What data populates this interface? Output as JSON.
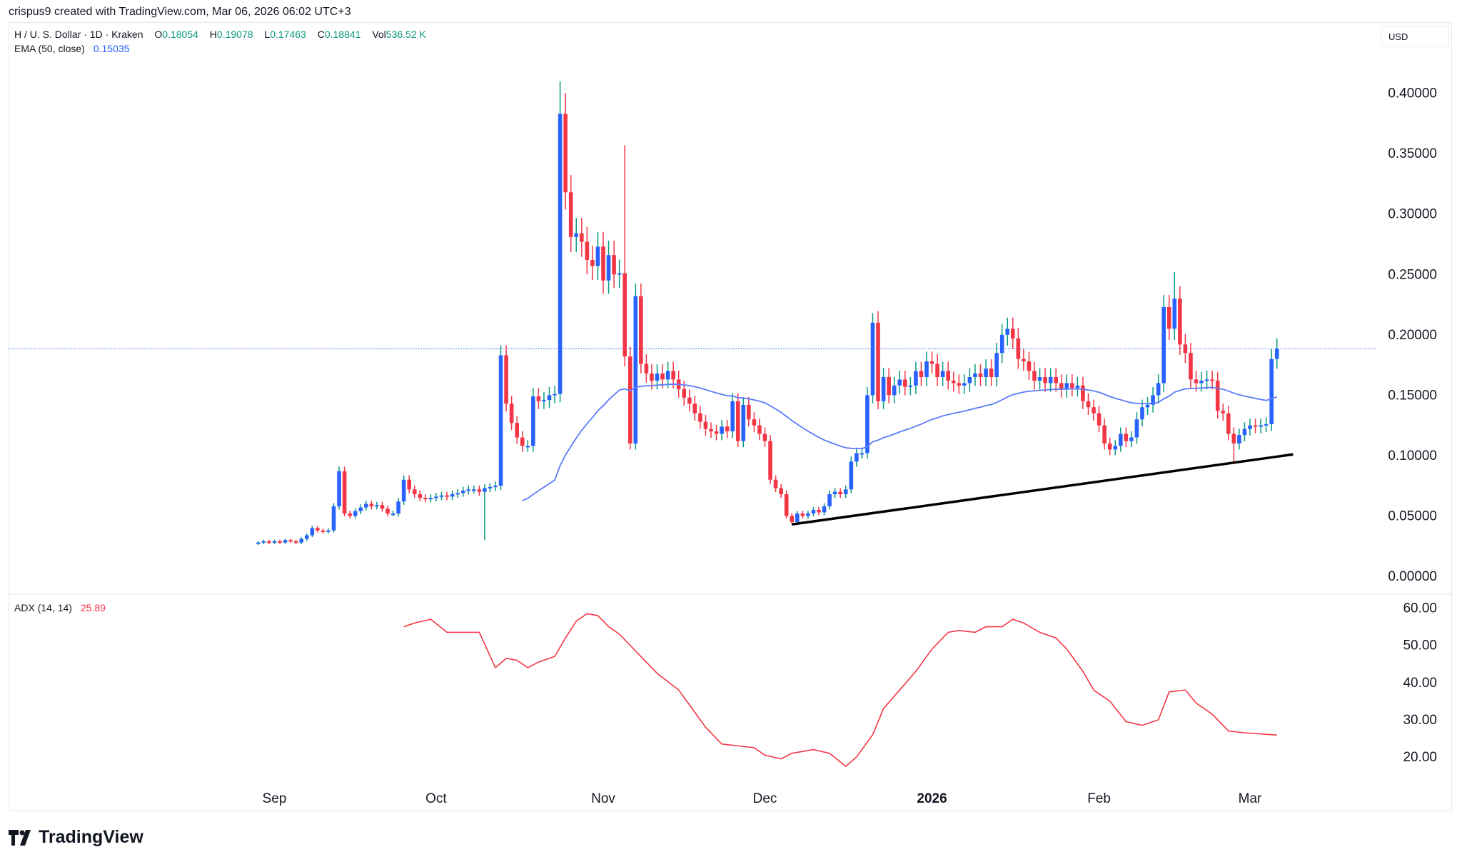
{
  "credit": "crispus9 created with TradingView.com, Mar 06, 2026 06:02 UTC+3",
  "legend": {
    "symbol": "H / U. S. Dollar · 1D · Kraken",
    "o_label": "O",
    "o": "0.18054",
    "h_label": "H",
    "h": "0.19078",
    "l_label": "L",
    "l": "0.17463",
    "c_label": "C",
    "c": "0.18841",
    "vol_label": "Vol",
    "vol": "536.52 K",
    "ema_label": "EMA (50, close)",
    "ema": "0.15035",
    "adx_label": "ADX (14, 14)",
    "adx": "25.89"
  },
  "currency": "USD",
  "logo": "TradingView",
  "colors": {
    "up": "#2962ff",
    "down": "#f23645",
    "wick_up": "#089981",
    "ema": "#5b7cfa",
    "adx": "#f23645",
    "last_price": "#2962ff",
    "trendline": "#000000"
  },
  "chart_data": [
    {
      "type": "candlestick",
      "price_axis": {
        "range": [
          0,
          0.42
        ],
        "ticks": [
          "0.40000",
          "0.35000",
          "0.30000",
          "0.25000",
          "0.20000",
          "0.15000",
          "0.10000",
          "0.05000",
          "0.00000"
        ]
      },
      "x_ticks": [
        {
          "label": "Sep",
          "date": "2025-09-01"
        },
        {
          "label": "Oct",
          "date": "2025-10-01"
        },
        {
          "label": "Nov",
          "date": "2025-11-01"
        },
        {
          "label": "Dec",
          "date": "2025-12-01"
        },
        {
          "label": "2026",
          "date": "2026-01-01",
          "bold": true
        },
        {
          "label": "Feb",
          "date": "2026-02-01"
        },
        {
          "label": "Mar",
          "date": "2026-03-01"
        }
      ],
      "closes": [
        {
          "month": "2025-08",
          "first_day": 29,
          "close": [
            0.028,
            0.029,
            0.028
          ]
        },
        {
          "month": "2025-09",
          "first_day": 1,
          "close": [
            0.029,
            0.028,
            0.03,
            0.029,
            0.028,
            0.031,
            0.034,
            0.04,
            0.038,
            0.037,
            0.038,
            0.058,
            0.087,
            0.052,
            0.05,
            0.054,
            0.057,
            0.06,
            0.058,
            0.059,
            0.056,
            0.052,
            0.052,
            0.062,
            0.08,
            0.072,
            0.068,
            0.065,
            0.064,
            0.065
          ]
        },
        {
          "month": "2025-10",
          "first_day": 1,
          "close": [
            0.066,
            0.067,
            0.066,
            0.068,
            0.069,
            0.071,
            0.072,
            0.072,
            0.07,
            0.073,
            0.074,
            0.075,
            0.183,
            0.143,
            0.127,
            0.115,
            0.108,
            0.108,
            0.149,
            0.145,
            0.146,
            0.15,
            0.151,
            0.383,
            0.318,
            0.281,
            0.284,
            0.277,
            0.262,
            0.257,
            0.273
          ]
        },
        {
          "month": "2025-11",
          "first_day": 1,
          "close": [
            0.245,
            0.266,
            0.25,
            0.251,
            0.182,
            0.11,
            0.232,
            0.176,
            0.168,
            0.162,
            0.168,
            0.163,
            0.17,
            0.163,
            0.155,
            0.148,
            0.143,
            0.135,
            0.128,
            0.122,
            0.12,
            0.118,
            0.124,
            0.12,
            0.145,
            0.112,
            0.142,
            0.13,
            0.125,
            0.118
          ]
        },
        {
          "month": "2025-12",
          "first_day": 1,
          "close": [
            0.112,
            0.08,
            0.073,
            0.068,
            0.05,
            0.045,
            0.052,
            0.05,
            0.052,
            0.055,
            0.053,
            0.058,
            0.068,
            0.07,
            0.068,
            0.072,
            0.095,
            0.102,
            0.102,
            0.15,
            0.21,
            0.145,
            0.165,
            0.15,
            0.158,
            0.163,
            0.157,
            0.158,
            0.17,
            0.165,
            0.178
          ]
        },
        {
          "month": "2026-01",
          "first_day": 1,
          "close": [
            0.176,
            0.165,
            0.17,
            0.162,
            0.16,
            0.158,
            0.16,
            0.165,
            0.168,
            0.165,
            0.172,
            0.165,
            0.185,
            0.2,
            0.205,
            0.197,
            0.18,
            0.178,
            0.17,
            0.162,
            0.165,
            0.16,
            0.165,
            0.16,
            0.155,
            0.16,
            0.156,
            0.158,
            0.145,
            0.14,
            0.135
          ]
        },
        {
          "month": "2026-02",
          "first_day": 1,
          "close": [
            0.125,
            0.11,
            0.105,
            0.108,
            0.118,
            0.112,
            0.115,
            0.13,
            0.14,
            0.142,
            0.15,
            0.16,
            0.223,
            0.205,
            0.23,
            0.192,
            0.185,
            0.163,
            0.16,
            0.162,
            0.163,
            0.162,
            0.137,
            0.135,
            0.118,
            0.11,
            0.117,
            0.122
          ]
        },
        {
          "month": "2026-03",
          "first_day": 1,
          "close": [
            0.125,
            0.124,
            0.125,
            0.126,
            0.18,
            0.18841
          ]
        }
      ],
      "notable_highs": [
        [
          "2025-10-24",
          0.41
        ],
        [
          "2025-11-05",
          0.357
        ],
        [
          "2025-12-21",
          0.218
        ],
        [
          "2026-02-15",
          0.252
        ]
      ],
      "notable_lows": [
        [
          "2025-10-10",
          0.03
        ],
        [
          "2026-02-26",
          0.093
        ]
      ],
      "ema_period": 50,
      "last_price": 0.18841,
      "trendline": [
        [
          "2025-12-06",
          0.043
        ],
        [
          "2026-03-09",
          0.101
        ]
      ]
    },
    {
      "type": "line",
      "name": "ADX (14, 14)",
      "y_axis": {
        "range": [
          12,
          64
        ],
        "ticks": [
          "60.00",
          "50.00",
          "40.00",
          "30.00",
          "20.00"
        ]
      },
      "points": [
        [
          "2025-09-25",
          55
        ],
        [
          "2025-09-27",
          56
        ],
        [
          "2025-09-30",
          57
        ],
        [
          "2025-10-03",
          53.5
        ],
        [
          "2025-10-06",
          53.5
        ],
        [
          "2025-10-09",
          53.5
        ],
        [
          "2025-10-12",
          44
        ],
        [
          "2025-10-14",
          46.5
        ],
        [
          "2025-10-16",
          46
        ],
        [
          "2025-10-18",
          44
        ],
        [
          "2025-10-20",
          45.5
        ],
        [
          "2025-10-23",
          47
        ],
        [
          "2025-10-25",
          52
        ],
        [
          "2025-10-27",
          56.5
        ],
        [
          "2025-10-29",
          58.5
        ],
        [
          "2025-10-31",
          58
        ],
        [
          "2025-11-02",
          55
        ],
        [
          "2025-11-04",
          53
        ],
        [
          "2025-11-06",
          50
        ],
        [
          "2025-11-08",
          47
        ],
        [
          "2025-11-11",
          42.5
        ],
        [
          "2025-11-15",
          38
        ],
        [
          "2025-11-17",
          34
        ],
        [
          "2025-11-20",
          28
        ],
        [
          "2025-11-23",
          23.5
        ],
        [
          "2025-11-26",
          23
        ],
        [
          "2025-11-29",
          22.5
        ],
        [
          "2025-12-01",
          20.5
        ],
        [
          "2025-12-04",
          19.5
        ],
        [
          "2025-12-06",
          21
        ],
        [
          "2025-12-10",
          22
        ],
        [
          "2025-12-13",
          21
        ],
        [
          "2025-12-16",
          17.5
        ],
        [
          "2025-12-18",
          20
        ],
        [
          "2025-12-21",
          26
        ],
        [
          "2025-12-23",
          33
        ],
        [
          "2025-12-26",
          38
        ],
        [
          "2025-12-29",
          43
        ],
        [
          "2026-01-01",
          49
        ],
        [
          "2026-01-04",
          53.5
        ],
        [
          "2026-01-06",
          54
        ],
        [
          "2026-01-09",
          53.5
        ],
        [
          "2026-01-11",
          55
        ],
        [
          "2026-01-14",
          55
        ],
        [
          "2026-01-16",
          57
        ],
        [
          "2026-01-18",
          56
        ],
        [
          "2026-01-21",
          53.5
        ],
        [
          "2026-01-24",
          52
        ],
        [
          "2026-01-26",
          49
        ],
        [
          "2026-01-29",
          43
        ],
        [
          "2026-01-31",
          38
        ],
        [
          "2026-02-03",
          35
        ],
        [
          "2026-02-06",
          29.5
        ],
        [
          "2026-02-09",
          28.5
        ],
        [
          "2026-02-12",
          30
        ],
        [
          "2026-02-14",
          37.5
        ],
        [
          "2026-02-17",
          38
        ],
        [
          "2026-02-19",
          34.5
        ],
        [
          "2026-02-22",
          31.5
        ],
        [
          "2026-02-25",
          27
        ],
        [
          "2026-02-28",
          26.5
        ],
        [
          "2026-03-06",
          25.89
        ]
      ]
    }
  ]
}
